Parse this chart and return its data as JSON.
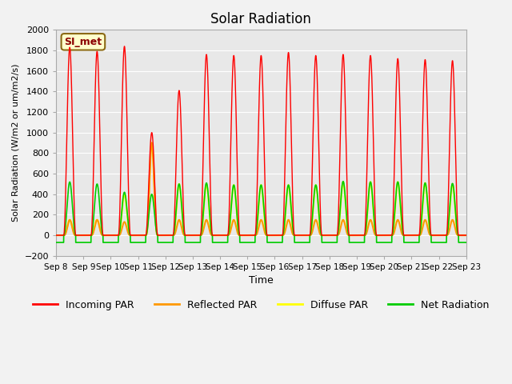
{
  "title": "Solar Radiation",
  "xlabel": "Time",
  "ylabel": "Solar Radiation (W/m2 or um/m2/s)",
  "ylim": [
    -200,
    2000
  ],
  "yticks": [
    -200,
    0,
    200,
    400,
    600,
    800,
    1000,
    1200,
    1400,
    1600,
    1800,
    2000
  ],
  "xtick_labels": [
    "Sep 8",
    "Sep 9",
    "Sep 10",
    "Sep 11",
    "Sep 12",
    "Sep 13",
    "Sep 14",
    "Sep 15",
    "Sep 16",
    "Sep 17",
    "Sep 18",
    "Sep 19",
    "Sep 20",
    "Sep 21",
    "Sep 22",
    "Sep 23"
  ],
  "n_days": 15,
  "annotation": "SI_met",
  "colors": {
    "incoming": "#ff0000",
    "reflected": "#ff9900",
    "diffuse": "#ffff00",
    "net": "#00cc00",
    "background": "#e8e8e8",
    "grid": "#ffffff",
    "fig_bg": "#f2f2f2"
  },
  "legend_labels": [
    "Incoming PAR",
    "Reflected PAR",
    "Diffuse PAR",
    "Net Radiation"
  ],
  "peaks_incoming": [
    1830,
    1790,
    1840,
    1000,
    1410,
    1760,
    1750,
    1750,
    1780,
    1750,
    1760,
    1750,
    1720,
    1710,
    1700
  ],
  "peaks_reflected": [
    150,
    150,
    130,
    900,
    150,
    150,
    150,
    150,
    150,
    150,
    150,
    150,
    150,
    150,
    150
  ],
  "peaks_diffuse": [
    150,
    150,
    400,
    900,
    500,
    500,
    490,
    490,
    490,
    490,
    520,
    520,
    520,
    510,
    500
  ],
  "peaks_net": [
    520,
    500,
    420,
    400,
    500,
    510,
    490,
    490,
    490,
    490,
    525,
    520,
    520,
    510,
    505
  ],
  "night_net": -70,
  "figsize": [
    6.4,
    4.8
  ],
  "dpi": 100
}
